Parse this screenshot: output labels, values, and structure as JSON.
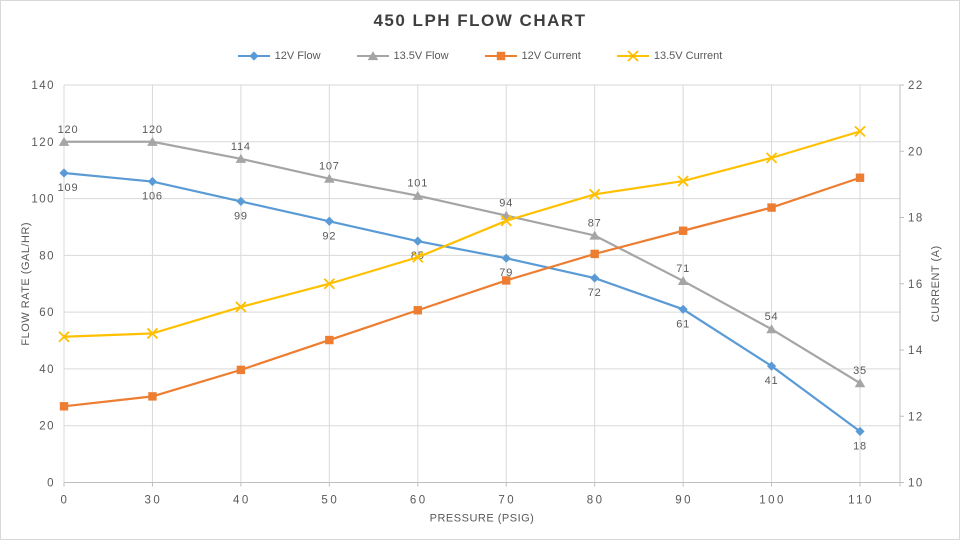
{
  "chart_data": {
    "type": "line",
    "title": "450 LPH FLOW CHART",
    "x": [
      0,
      30,
      40,
      50,
      60,
      70,
      80,
      90,
      100,
      110
    ],
    "x_type": "category",
    "xlabel": "PRESSURE (PSIG)",
    "grid": true,
    "legend_position": "top",
    "y_left": {
      "label": "FLOW RATE (GAL/HR)",
      "min": 0,
      "max": 140,
      "step": 20
    },
    "y_right": {
      "label": "CURRENT (A)",
      "min": 10,
      "max": 22,
      "step": 2
    },
    "series": [
      {
        "name": "12V Flow",
        "axis": "left",
        "color": "#5B9BD5",
        "marker": "diamond",
        "data_labels": "below",
        "values": [
          109,
          106,
          99,
          92,
          85,
          79,
          72,
          61,
          41,
          18
        ]
      },
      {
        "name": "13.5V Flow",
        "axis": "left",
        "color": "#A5A5A5",
        "marker": "triangle",
        "data_labels": "above",
        "values": [
          120,
          120,
          114,
          107,
          101,
          94,
          87,
          71,
          54,
          35
        ]
      },
      {
        "name": "12V Current",
        "axis": "right",
        "color": "#ED7D31",
        "marker": "square",
        "data_labels": "none",
        "values": [
          12.3,
          12.6,
          13.4,
          14.3,
          15.2,
          16.1,
          16.9,
          17.6,
          18.3,
          19.2
        ]
      },
      {
        "name": "13.5V Current",
        "axis": "right",
        "color": "#FFC000",
        "marker": "x",
        "data_labels": "none",
        "values": [
          14.4,
          14.5,
          15.3,
          16.0,
          16.8,
          17.9,
          18.7,
          19.1,
          19.8,
          20.6
        ]
      }
    ]
  },
  "colors": {
    "grid": "#D9D9D9",
    "axis_line": "#BFBFBF",
    "tick_text": "#595959",
    "axis_title_text": "#595959",
    "data_label_text": "#595959",
    "title_text": "#3F3F3F"
  }
}
